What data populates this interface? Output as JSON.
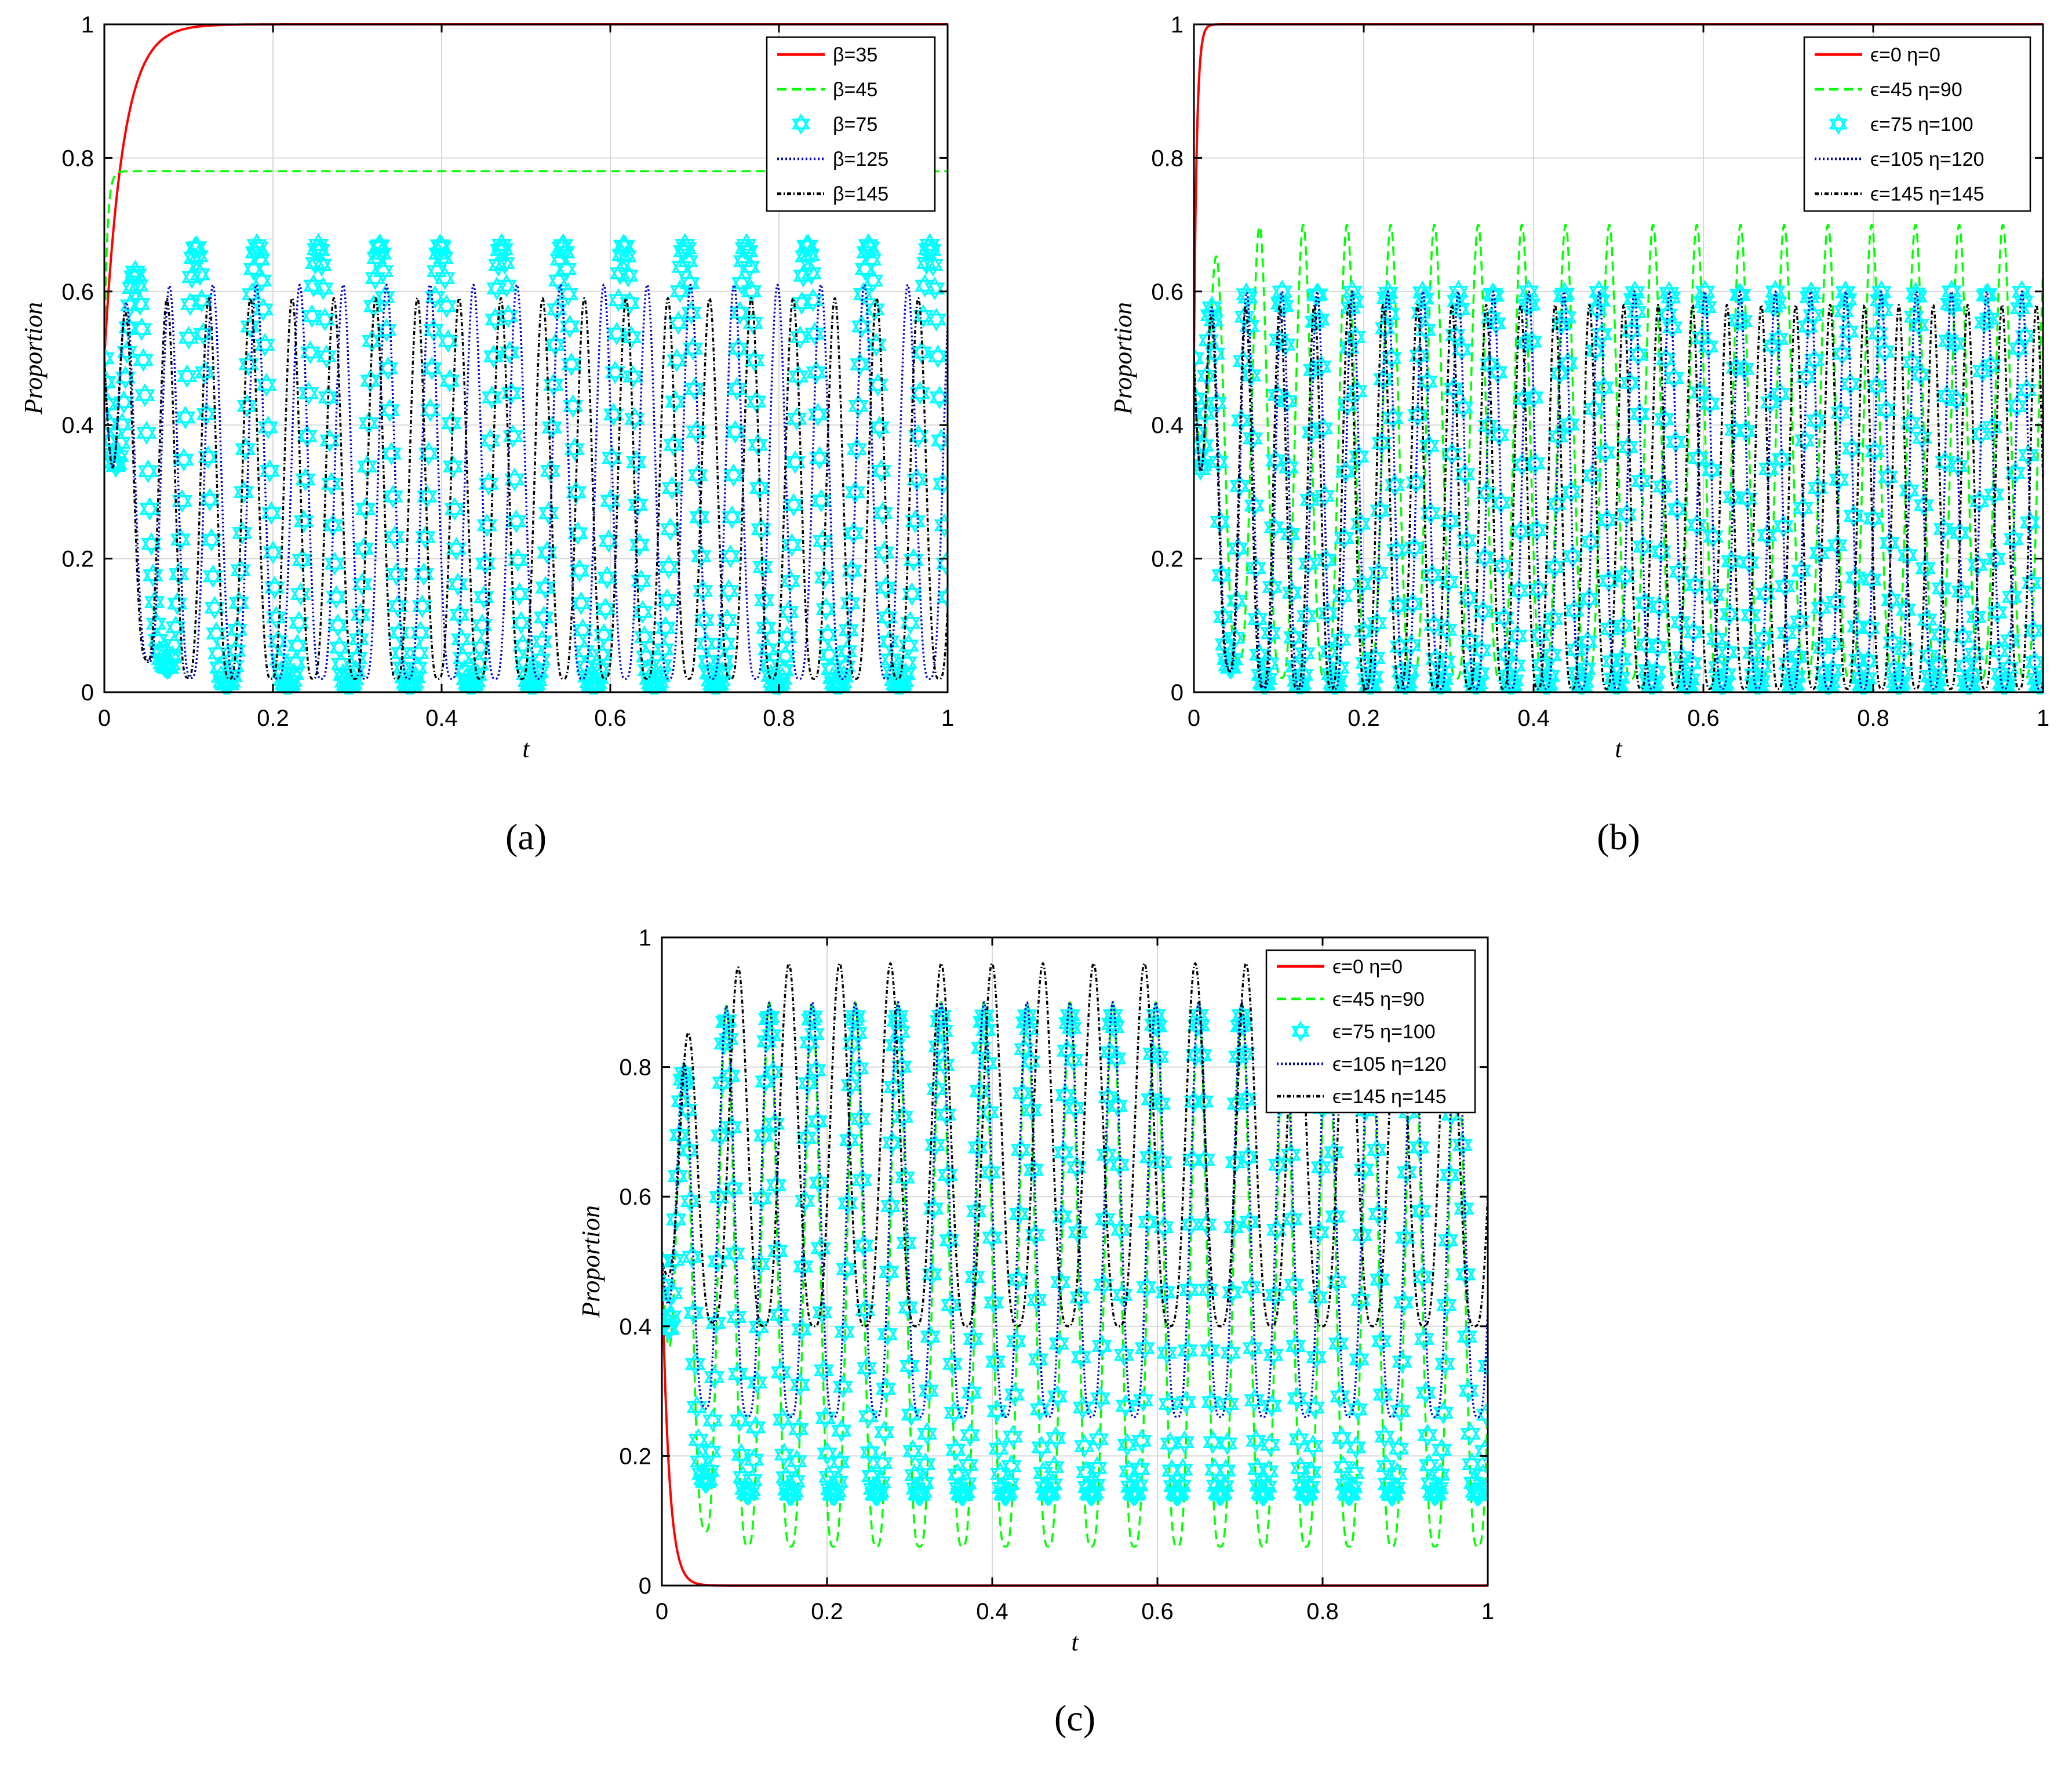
{
  "figure": {
    "panel_labels": [
      "(a)",
      "(b)",
      "(c)"
    ]
  },
  "chart_data": [
    {
      "id": "a",
      "type": "line",
      "panel_label": "(a)",
      "xlabel": "t",
      "ylabel": "Proportion",
      "xlim": [
        0,
        1
      ],
      "ylim": [
        0,
        1
      ],
      "xticks": [
        0,
        0.2,
        0.4,
        0.6,
        0.8,
        1
      ],
      "xtick_labels": [
        "0",
        "0.2",
        "0.4",
        "0.6",
        "0.8",
        "1"
      ],
      "yticks": [
        0,
        0.2,
        0.4,
        0.6,
        0.8,
        1
      ],
      "ytick_labels": [
        "0",
        "0.2",
        "0.4",
        "0.6",
        "0.8",
        "1"
      ],
      "grid": true,
      "legend_position": "top-right",
      "series": [
        {
          "name": "β=35",
          "color": "#ff0000",
          "style": "solid",
          "behavior": "saturate",
          "start": 0.5,
          "end": 1.0,
          "rate": 45
        },
        {
          "name": "β=45",
          "color": "#00ff00",
          "style": "dashed",
          "behavior": "saturate",
          "start": 0.5,
          "end": 0.78,
          "rate": 300
        },
        {
          "name": "β=75",
          "color": "#00ffff",
          "style": "star-markers",
          "behavior": "oscillate",
          "period": 0.0725,
          "min": 0.01,
          "max": 0.67
        },
        {
          "name": "β=125",
          "color": "#0000cc",
          "style": "dotted",
          "behavior": "oscillate",
          "period": 0.0515,
          "min": 0.02,
          "max": 0.61
        },
        {
          "name": "β=145",
          "color": "#000000",
          "style": "dash-dot-points",
          "behavior": "oscillate",
          "period": 0.0495,
          "min": 0.02,
          "max": 0.59
        }
      ]
    },
    {
      "id": "b",
      "type": "line",
      "panel_label": "(b)",
      "xlabel": "t",
      "ylabel": "Proportion",
      "xlim": [
        0,
        1
      ],
      "ylim": [
        0,
        1
      ],
      "xticks": [
        0,
        0.2,
        0.4,
        0.6,
        0.8,
        1
      ],
      "xtick_labels": [
        "0",
        "0.2",
        "0.4",
        "0.6",
        "0.8",
        "1"
      ],
      "yticks": [
        0,
        0.2,
        0.4,
        0.6,
        0.8,
        1
      ],
      "ytick_labels": [
        "0",
        "0.2",
        "0.4",
        "0.6",
        "0.8",
        "1"
      ],
      "grid": true,
      "legend_position": "top-right",
      "series": [
        {
          "name": "ϵ=0 η=0",
          "color": "#ff0000",
          "style": "solid",
          "behavior": "saturate",
          "start": 0.5,
          "end": 1.0,
          "rate": 300
        },
        {
          "name": "ϵ=45 η=90",
          "color": "#00ff00",
          "style": "dashed",
          "behavior": "oscillate",
          "period": 0.0515,
          "min": 0.02,
          "max": 0.7
        },
        {
          "name": "ϵ=75 η=100",
          "color": "#00ffff",
          "style": "star-markers",
          "behavior": "oscillate",
          "period": 0.0415,
          "min": 0.01,
          "max": 0.6
        },
        {
          "name": "ϵ=105 η=120",
          "color": "#0000cc",
          "style": "dotted",
          "behavior": "oscillate",
          "period": 0.0415,
          "min": 0.005,
          "max": 0.6
        },
        {
          "name": "ϵ=145 η=145",
          "color": "#000000",
          "style": "dash-dot-points",
          "behavior": "oscillate",
          "period": 0.0405,
          "min": 0.005,
          "max": 0.58
        }
      ]
    },
    {
      "id": "c",
      "type": "line",
      "panel_label": "(c)",
      "xlabel": "t",
      "ylabel": "Proportion",
      "xlim": [
        0,
        1
      ],
      "ylim": [
        0,
        1
      ],
      "xticks": [
        0,
        0.2,
        0.4,
        0.6,
        0.8,
        1
      ],
      "xtick_labels": [
        "0",
        "0.2",
        "0.4",
        "0.6",
        "0.8",
        "1"
      ],
      "yticks": [
        0,
        0.2,
        0.4,
        0.6,
        0.8,
        1
      ],
      "ytick_labels": [
        "0",
        "0.2",
        "0.4",
        "0.6",
        "0.8",
        "1"
      ],
      "grid": true,
      "legend_position": "top-right",
      "series": [
        {
          "name": "ϵ=0 η=0",
          "color": "#ff0000",
          "style": "solid",
          "behavior": "saturate",
          "start": 0.5,
          "end": 0.0,
          "rate": 120
        },
        {
          "name": "ϵ=45 η=90",
          "color": "#00ff00",
          "style": "dashed",
          "behavior": "oscillate",
          "period": 0.052,
          "min": 0.06,
          "max": 0.9
        },
        {
          "name": "ϵ=75 η=100",
          "color": "#00ffff",
          "style": "star-markers",
          "behavior": "oscillate",
          "period": 0.052,
          "min": 0.14,
          "max": 0.88
        },
        {
          "name": "ϵ=105 η=120",
          "color": "#0000cc",
          "style": "dotted",
          "behavior": "oscillate",
          "period": 0.052,
          "min": 0.26,
          "max": 0.9
        },
        {
          "name": "ϵ=145 η=145",
          "color": "#000000",
          "style": "dash-dot-points",
          "behavior": "oscillate",
          "period": 0.0615,
          "min": 0.4,
          "max": 0.96
        }
      ]
    }
  ]
}
